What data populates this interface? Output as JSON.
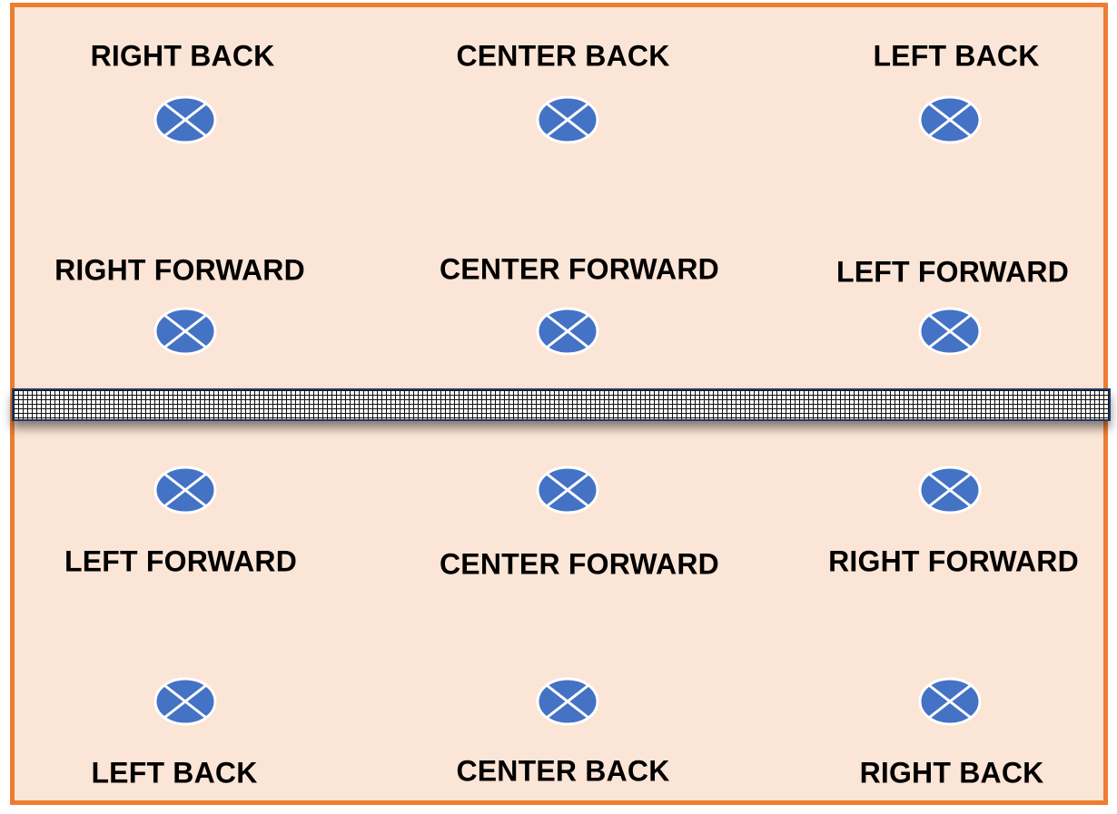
{
  "colors": {
    "court_fill": "#FBE5D6",
    "court_border": "#ED7D31",
    "marker_fill": "#4472C4",
    "marker_stroke": "#FFFFFF",
    "net_border": "#1F3864"
  },
  "icons": {
    "player_marker": "circle-x-icon"
  },
  "top_side": {
    "back_row": [
      "RIGHT BACK",
      "CENTER BACK",
      "LEFT BACK"
    ],
    "forward_row": [
      "RIGHT FORWARD",
      "CENTER FORWARD",
      "LEFT FORWARD"
    ]
  },
  "bottom_side": {
    "forward_row": [
      "LEFT FORWARD",
      "CENTER FORWARD",
      "RIGHT FORWARD"
    ],
    "back_row": [
      "LEFT BACK",
      "CENTER BACK",
      "RIGHT BACK"
    ]
  }
}
